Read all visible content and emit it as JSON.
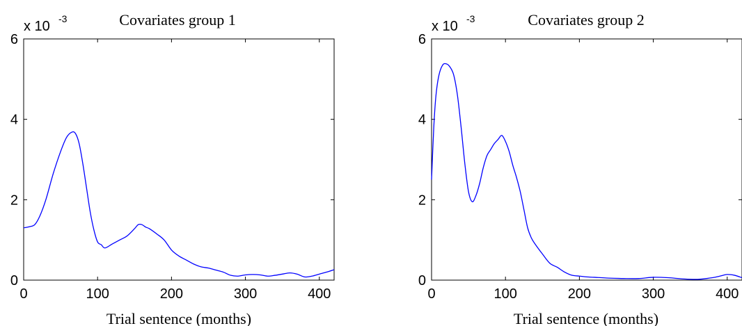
{
  "chart_data": [
    {
      "type": "line",
      "title": "Covariates group 1",
      "xlabel": "Trial sentence (months)",
      "ylabel": "",
      "y_multiplier": "x 10",
      "y_multiplier_exponent": "-3",
      "xlim": [
        0,
        420
      ],
      "ylim": [
        0,
        6
      ],
      "xticks": [
        "0",
        "100",
        "200",
        "300",
        "400"
      ],
      "yticks": [
        "0",
        "2",
        "4",
        "6"
      ],
      "grid": false,
      "color": "#0000ff",
      "series": [
        {
          "x": [
            0,
            8,
            15,
            22,
            30,
            40,
            50,
            58,
            65,
            70,
            75,
            80,
            85,
            90,
            95,
            100,
            105,
            110,
            120,
            130,
            140,
            150,
            155,
            160,
            165,
            170,
            180,
            190,
            200,
            210,
            220,
            230,
            240,
            250,
            260,
            270,
            280,
            290,
            300,
            310,
            320,
            330,
            340,
            350,
            360,
            370,
            380,
            390,
            400,
            410,
            420
          ],
          "y": [
            1.3,
            1.33,
            1.38,
            1.6,
            2.0,
            2.65,
            3.2,
            3.55,
            3.68,
            3.65,
            3.4,
            2.9,
            2.3,
            1.7,
            1.25,
            0.95,
            0.88,
            0.8,
            0.9,
            1.0,
            1.1,
            1.28,
            1.38,
            1.38,
            1.32,
            1.28,
            1.15,
            1.0,
            0.75,
            0.6,
            0.5,
            0.4,
            0.33,
            0.3,
            0.25,
            0.2,
            0.12,
            0.1,
            0.13,
            0.14,
            0.13,
            0.1,
            0.12,
            0.15,
            0.18,
            0.15,
            0.08,
            0.1,
            0.15,
            0.2,
            0.26
          ]
        }
      ]
    },
    {
      "type": "line",
      "title": "Covariates group 2",
      "xlabel": "Trial sentence (months)",
      "ylabel": "",
      "y_multiplier": "x 10",
      "y_multiplier_exponent": "-3",
      "xlim": [
        0,
        420
      ],
      "ylim": [
        0,
        6
      ],
      "xticks": [
        "0",
        "100",
        "200",
        "300",
        "400"
      ],
      "yticks": [
        "0",
        "2",
        "4",
        "6"
      ],
      "grid": false,
      "color": "#0000ff",
      "series": [
        {
          "x": [
            0,
            3,
            6,
            10,
            15,
            20,
            25,
            30,
            35,
            40,
            45,
            50,
            55,
            60,
            65,
            70,
            75,
            80,
            85,
            90,
            95,
            100,
            105,
            110,
            115,
            120,
            125,
            130,
            135,
            140,
            150,
            160,
            170,
            180,
            190,
            200,
            210,
            220,
            240,
            260,
            280,
            300,
            320,
            340,
            360,
            380,
            390,
            400,
            410,
            420
          ],
          "y": [
            2.5,
            3.8,
            4.6,
            5.1,
            5.35,
            5.38,
            5.3,
            5.1,
            4.6,
            3.8,
            2.9,
            2.2,
            1.95,
            2.1,
            2.4,
            2.8,
            3.1,
            3.25,
            3.4,
            3.5,
            3.6,
            3.45,
            3.2,
            2.85,
            2.55,
            2.2,
            1.75,
            1.3,
            1.05,
            0.9,
            0.65,
            0.42,
            0.32,
            0.2,
            0.12,
            0.1,
            0.08,
            0.07,
            0.05,
            0.04,
            0.04,
            0.07,
            0.06,
            0.03,
            0.02,
            0.06,
            0.1,
            0.14,
            0.12,
            0.06
          ]
        }
      ]
    }
  ]
}
